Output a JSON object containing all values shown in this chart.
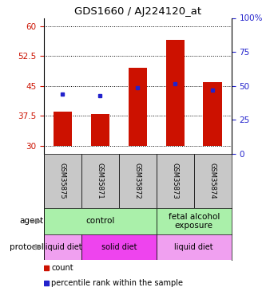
{
  "title": "GDS1660 / AJ224120_at",
  "samples": [
    "GSM35875",
    "GSM35871",
    "GSM35872",
    "GSM35873",
    "GSM35874"
  ],
  "bar_bottoms": [
    30,
    30,
    30,
    30,
    30
  ],
  "bar_tops": [
    38.5,
    38.0,
    49.5,
    56.5,
    46.0
  ],
  "blue_values": [
    43.0,
    42.5,
    44.5,
    45.5,
    44.0
  ],
  "ylim_left": [
    28,
    62
  ],
  "ylim_right": [
    0,
    100
  ],
  "yticks_left": [
    30,
    37.5,
    45,
    52.5,
    60
  ],
  "yticks_right": [
    0,
    25,
    50,
    75,
    100
  ],
  "left_tick_labels": [
    "30",
    "37.5",
    "45",
    "52.5",
    "60"
  ],
  "right_tick_labels": [
    "0",
    "25",
    "50",
    "75",
    "100%"
  ],
  "bar_color": "#cc1100",
  "blue_color": "#2222cc",
  "agent_labels": [
    {
      "text": "control",
      "span": [
        0,
        3
      ],
      "color": "#aaf0aa"
    },
    {
      "text": "fetal alcohol\nexposure",
      "span": [
        3,
        5
      ],
      "color": "#aaf0aa"
    }
  ],
  "protocol_labels": [
    {
      "text": "liquid diet",
      "span": [
        0,
        1
      ],
      "color": "#f0a0f0"
    },
    {
      "text": "solid diet",
      "span": [
        1,
        3
      ],
      "color": "#ee44ee"
    },
    {
      "text": "liquid diet",
      "span": [
        3,
        5
      ],
      "color": "#f0a0f0"
    }
  ],
  "agent_row_label": "agent",
  "protocol_row_label": "protocol",
  "legend_items": [
    {
      "label": "count",
      "color": "#cc1100"
    },
    {
      "label": "percentile rank within the sample",
      "color": "#2222cc"
    }
  ],
  "sample_box_color": "#c8c8c8",
  "bar_width": 0.5
}
